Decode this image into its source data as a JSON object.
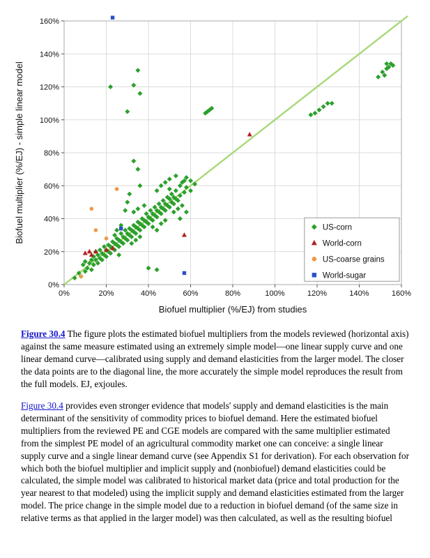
{
  "page": {
    "background": "#ffffff"
  },
  "caption": {
    "link_text": "Figure 30.4",
    "text": "The figure plots the estimated biofuel multipliers from the models reviewed (horizontal axis) against the same measure estimated using an extremely simple model—one linear supply curve and one linear demand curve—calibrated using supply and demand elasticities from the larger model. The closer the data points are to the diagonal line, the more accurately the simple model reproduces the result from the full models. EJ, exjoules."
  },
  "body": {
    "link_text": "Figure 30.4",
    "text": "provides even stronger evidence that models' supply and demand elasticities is the main determinant of the sensitivity of commodity prices to biofuel demand. Here the estimated biofuel multipliers from the reviewed PE and CGE models are compared with the same multiplier estimated from the simplest PE model of an agricultural commodity market one can conceive: a single linear supply curve and a single linear demand curve (see Appendix S1 for derivation). For each observation for which both the biofuel multiplier and implicit supply and (nonbiofuel) demand elasticities could be calculated, the simple model was calibrated to historical market data (price and total production for the year nearest to that modeled) using the implicit supply and demand elasticities estimated from the larger model. The price change in the simple model due to a reduction in biofuel demand (of the same size in relative terms as that applied in the larger model) was then calculated, as well as the resulting biofuel"
  },
  "chart_data": {
    "type": "scatter",
    "title": "",
    "xlabel": "Biofuel multiplier (%/EJ) from studies",
    "ylabel": "Biofuel multiplier (%/EJ) - simple linear model",
    "xlim": [
      0,
      160
    ],
    "ylim": [
      0,
      160
    ],
    "tick_values": [
      0,
      20,
      40,
      60,
      80,
      100,
      120,
      140,
      160
    ],
    "tick_percent_labels": [
      "0%",
      "20%",
      "40%",
      "60%",
      "80%",
      "100%",
      "120%",
      "140%",
      "160%"
    ],
    "grid": true,
    "units": "percent per EJ",
    "reference_line": {
      "label": "y = x diagonal",
      "from": [
        0,
        0
      ],
      "to": [
        160,
        160
      ],
      "color": "#a8d878"
    },
    "legend_position": "inside-lower-right",
    "series": [
      {
        "name": "US-corn",
        "marker": "diamond",
        "color": "#2ca02c",
        "points": [
          [
            5,
            4
          ],
          [
            7,
            7
          ],
          [
            8,
            5
          ],
          [
            9,
            12
          ],
          [
            10,
            8
          ],
          [
            10,
            14
          ],
          [
            11,
            10
          ],
          [
            12,
            13
          ],
          [
            13,
            9
          ],
          [
            13,
            15
          ],
          [
            14,
            12
          ],
          [
            14,
            17
          ],
          [
            15,
            15
          ],
          [
            15,
            20
          ],
          [
            16,
            13
          ],
          [
            16,
            18
          ],
          [
            17,
            16
          ],
          [
            17,
            21
          ],
          [
            18,
            15
          ],
          [
            18,
            19
          ],
          [
            19,
            18
          ],
          [
            19,
            23
          ],
          [
            20,
            17
          ],
          [
            20,
            21
          ],
          [
            21,
            20
          ],
          [
            21,
            24
          ],
          [
            22,
            19
          ],
          [
            22,
            23
          ],
          [
            23,
            22
          ],
          [
            23,
            26
          ],
          [
            24,
            21
          ],
          [
            24,
            25
          ],
          [
            25,
            24
          ],
          [
            25,
            28
          ],
          [
            26,
            23
          ],
          [
            26,
            27
          ],
          [
            27,
            26
          ],
          [
            27,
            31
          ],
          [
            28,
            25
          ],
          [
            28,
            29
          ],
          [
            29,
            28
          ],
          [
            29,
            33
          ],
          [
            30,
            27
          ],
          [
            30,
            31
          ],
          [
            25,
            33
          ],
          [
            27,
            36
          ],
          [
            24,
            30
          ],
          [
            26,
            18
          ],
          [
            31,
            30
          ],
          [
            31,
            34
          ],
          [
            32,
            29
          ],
          [
            32,
            33
          ],
          [
            33,
            32
          ],
          [
            33,
            36
          ],
          [
            34,
            31
          ],
          [
            34,
            35
          ],
          [
            35,
            34
          ],
          [
            35,
            38
          ],
          [
            36,
            33
          ],
          [
            36,
            37
          ],
          [
            37,
            36
          ],
          [
            37,
            40
          ],
          [
            38,
            35
          ],
          [
            38,
            39
          ],
          [
            39,
            38
          ],
          [
            39,
            43
          ],
          [
            40,
            37
          ],
          [
            40,
            41
          ],
          [
            33,
            44
          ],
          [
            35,
            46
          ],
          [
            38,
            48
          ],
          [
            32,
            25
          ],
          [
            34,
            27
          ],
          [
            36,
            29
          ],
          [
            33,
            75
          ],
          [
            35,
            70
          ],
          [
            31,
            55
          ],
          [
            36,
            60
          ],
          [
            29,
            45
          ],
          [
            30,
            50
          ],
          [
            41,
            40
          ],
          [
            41,
            45
          ],
          [
            42,
            39
          ],
          [
            42,
            43
          ],
          [
            43,
            42
          ],
          [
            43,
            47
          ],
          [
            44,
            41
          ],
          [
            44,
            45
          ],
          [
            45,
            44
          ],
          [
            45,
            49
          ],
          [
            46,
            43
          ],
          [
            46,
            47
          ],
          [
            47,
            46
          ],
          [
            47,
            51
          ],
          [
            48,
            45
          ],
          [
            48,
            49
          ],
          [
            49,
            48
          ],
          [
            49,
            53
          ],
          [
            50,
            47
          ],
          [
            50,
            52
          ],
          [
            44,
            57
          ],
          [
            46,
            60
          ],
          [
            48,
            62
          ],
          [
            50,
            64
          ],
          [
            42,
            35
          ],
          [
            44,
            33
          ],
          [
            46,
            37
          ],
          [
            48,
            39
          ],
          [
            40,
            10
          ],
          [
            44,
            9
          ],
          [
            51,
            50
          ],
          [
            51,
            55
          ],
          [
            52,
            49
          ],
          [
            52,
            53
          ],
          [
            53,
            52
          ],
          [
            53,
            57
          ],
          [
            54,
            51
          ],
          [
            55,
            54
          ],
          [
            55,
            60
          ],
          [
            56,
            62
          ],
          [
            57,
            56
          ],
          [
            57,
            63
          ],
          [
            58,
            59
          ],
          [
            58,
            65
          ],
          [
            60,
            57
          ],
          [
            60,
            63
          ],
          [
            62,
            61
          ],
          [
            52,
            44
          ],
          [
            54,
            46
          ],
          [
            56,
            48
          ],
          [
            55,
            40
          ],
          [
            58,
            44
          ],
          [
            50,
            58
          ],
          [
            53,
            66
          ],
          [
            22,
            120
          ],
          [
            30,
            105
          ],
          [
            33,
            121
          ],
          [
            35,
            130
          ],
          [
            36,
            116
          ],
          [
            67,
            104
          ],
          [
            68,
            105
          ],
          [
            69,
            106
          ],
          [
            70,
            107
          ],
          [
            117,
            103
          ],
          [
            119,
            104
          ],
          [
            121,
            106
          ],
          [
            123,
            108
          ],
          [
            125,
            110
          ],
          [
            127,
            110
          ],
          [
            149,
            126
          ],
          [
            151,
            129
          ],
          [
            152,
            127
          ],
          [
            153,
            131
          ],
          [
            154,
            132
          ],
          [
            155,
            134
          ],
          [
            156,
            133
          ],
          [
            153,
            134
          ]
        ]
      },
      {
        "name": "World-corn",
        "marker": "triangle",
        "color": "#b22222",
        "points": [
          [
            10,
            19
          ],
          [
            12,
            20
          ],
          [
            13,
            18
          ],
          [
            15,
            20
          ],
          [
            20,
            21
          ],
          [
            23,
            22
          ],
          [
            57,
            30
          ],
          [
            88,
            91
          ]
        ]
      },
      {
        "name": "US-coarse grains",
        "marker": "circle",
        "color": "#ef9849",
        "points": [
          [
            8,
            5
          ],
          [
            13,
            46
          ],
          [
            15,
            33
          ],
          [
            20,
            28
          ],
          [
            25,
            58
          ]
        ]
      },
      {
        "name": "World-sugar",
        "marker": "square",
        "color": "#2b50c8",
        "points": [
          [
            23,
            162
          ],
          [
            27,
            34
          ],
          [
            57,
            7
          ]
        ]
      }
    ]
  }
}
